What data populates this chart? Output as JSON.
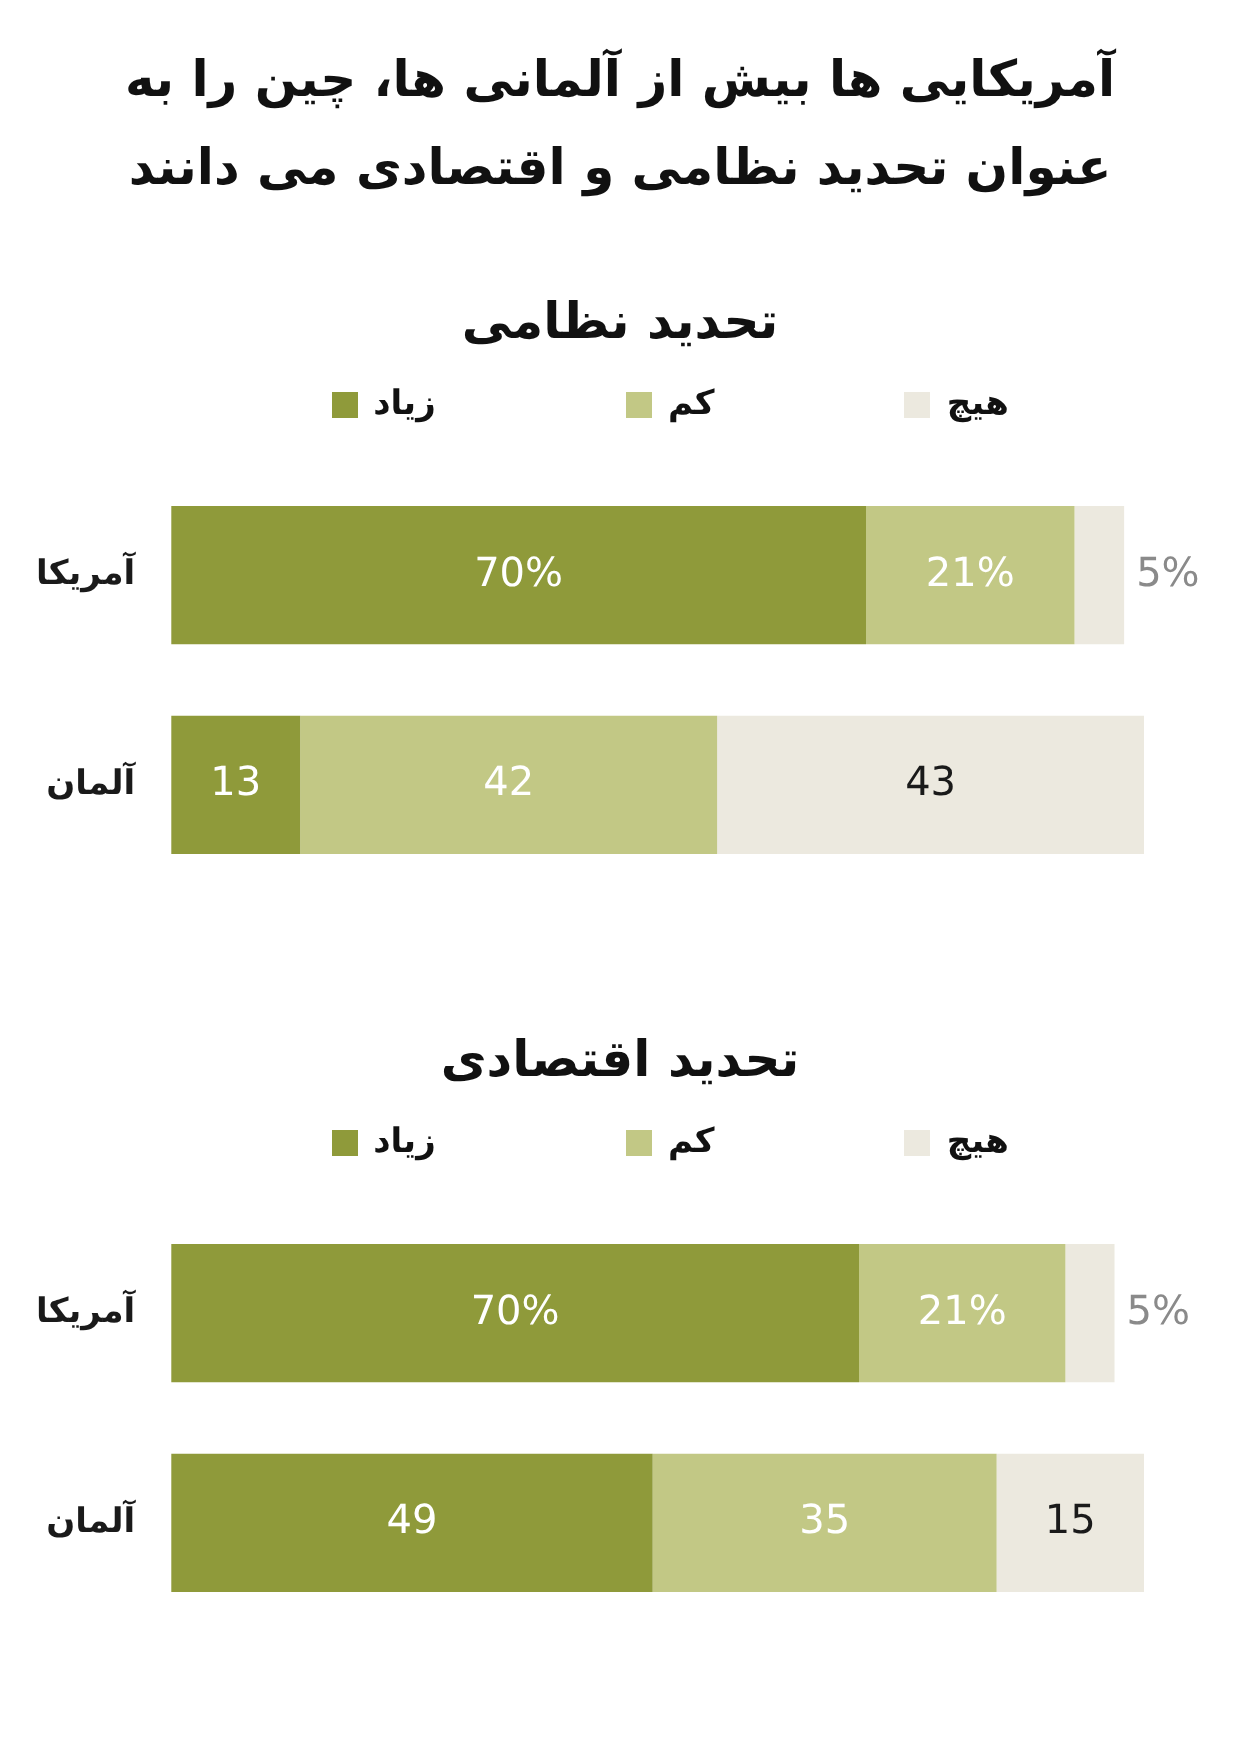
{
  "chart_data": [
    {
      "type": "bar",
      "orientation": "horizontal",
      "stacked": true,
      "title": "آمریکایی ها بیش از آلمانی ها، چین را به عنوان تحدید نظامی و اقتصادی می دانند",
      "subtitle": "تحدید نظامی",
      "legend": "top",
      "categories": [
        "آمریکا",
        "آلمان"
      ],
      "series": [
        {
          "name": "زیاد",
          "color": "#8f9a3a",
          "values": [
            70,
            13
          ],
          "value_labels": [
            "70%",
            "13"
          ]
        },
        {
          "name": "کم",
          "color": "#c2c885",
          "values": [
            21,
            42
          ],
          "value_labels": [
            "21%",
            "42"
          ]
        },
        {
          "name": "هیچ",
          "color": "#ece9df",
          "values": [
            5,
            43
          ],
          "value_labels": [
            "5%",
            "43"
          ]
        }
      ]
    },
    {
      "type": "bar",
      "orientation": "horizontal",
      "stacked": true,
      "title": "تحدید اقتصادی",
      "legend": "top",
      "categories": [
        "آمریکا",
        "آلمان"
      ],
      "series": [
        {
          "name": "زیاد",
          "color": "#8f9a3a",
          "values": [
            70,
            49
          ],
          "value_labels": [
            "70%",
            "49"
          ]
        },
        {
          "name": "کم",
          "color": "#c2c885",
          "values": [
            21,
            35
          ],
          "value_labels": [
            "21%",
            "35"
          ]
        },
        {
          "name": "هیچ",
          "color": "#ece9df",
          "values": [
            5,
            15
          ],
          "value_labels": [
            "5%",
            "15"
          ]
        }
      ]
    }
  ]
}
